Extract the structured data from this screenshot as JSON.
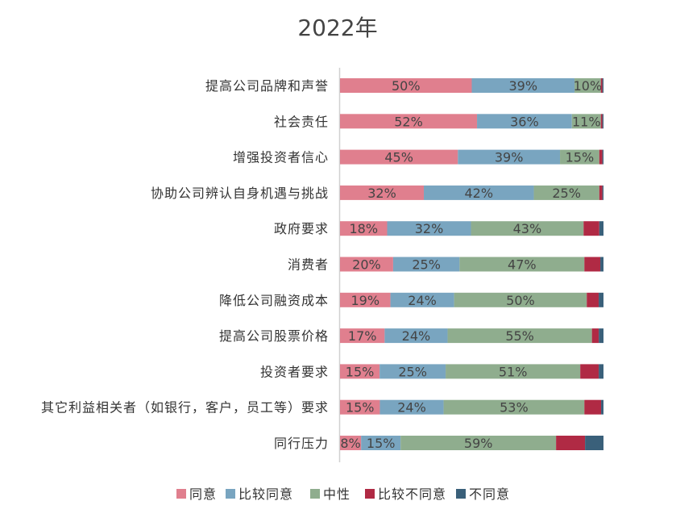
{
  "chart_data": {
    "type": "bar",
    "orientation": "horizontal",
    "stacked": true,
    "percent_stacked": true,
    "title": "2022年",
    "legend_position": "bottom",
    "grid": false,
    "xlim": [
      0,
      100
    ],
    "categories": [
      "提高公司品牌和声誉",
      "社会责任",
      "增强投资者信心",
      "协助公司辨认自身机遇与挑战",
      "政府要求",
      "消费者",
      "降低公司融资成本",
      "提高公司股票价格",
      "投资者要求",
      "其它利益相关者（如银行，客户，员工等）要求",
      "同行压力"
    ],
    "series": [
      {
        "name": "同意",
        "color": "#e07f8e",
        "values": [
          50,
          52,
          45,
          32,
          18,
          20,
          19,
          17,
          15,
          15,
          8
        ]
      },
      {
        "name": "比较同意",
        "color": "#79a5c0",
        "values": [
          39,
          36,
          39,
          42,
          32,
          25,
          24,
          24,
          25,
          24,
          15
        ]
      },
      {
        "name": "中性",
        "color": "#8fad8e",
        "values": [
          10,
          11,
          15,
          25,
          43,
          47,
          50,
          55,
          51,
          53,
          59
        ]
      },
      {
        "name": "比较不同意",
        "color": "#b02a44",
        "values": [
          0.6,
          0.6,
          1.2,
          1.2,
          6,
          6,
          4.5,
          2.6,
          7,
          6.3,
          11
        ]
      },
      {
        "name": "不同意",
        "color": "#3a607a",
        "values": [
          0.4,
          0.4,
          0.4,
          0.4,
          1.6,
          1.2,
          1.8,
          1.8,
          1.8,
          0.9,
          7
        ]
      }
    ],
    "labeled_series": [
      0,
      1,
      2
    ]
  }
}
